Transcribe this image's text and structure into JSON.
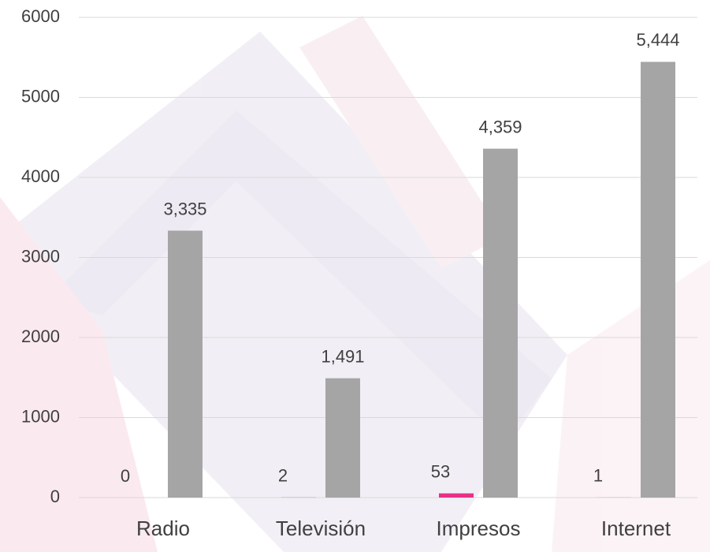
{
  "chart_data": {
    "type": "bar",
    "categories": [
      "Radio",
      "Televisión",
      "Impresos",
      "Internet"
    ],
    "series": [
      {
        "color": "#e8308a",
        "values": [
          0,
          2,
          53,
          1
        ]
      },
      {
        "color": "#a5a5a5",
        "values": [
          3335,
          1491,
          4359,
          5444
        ],
        "value_labels": [
          "3,335",
          "1,491",
          "4,359",
          "5,444"
        ]
      }
    ],
    "ylim": [
      0,
      6000
    ],
    "yticks": [
      0,
      1000,
      2000,
      3000,
      4000,
      5000,
      6000
    ],
    "grid": true
  }
}
